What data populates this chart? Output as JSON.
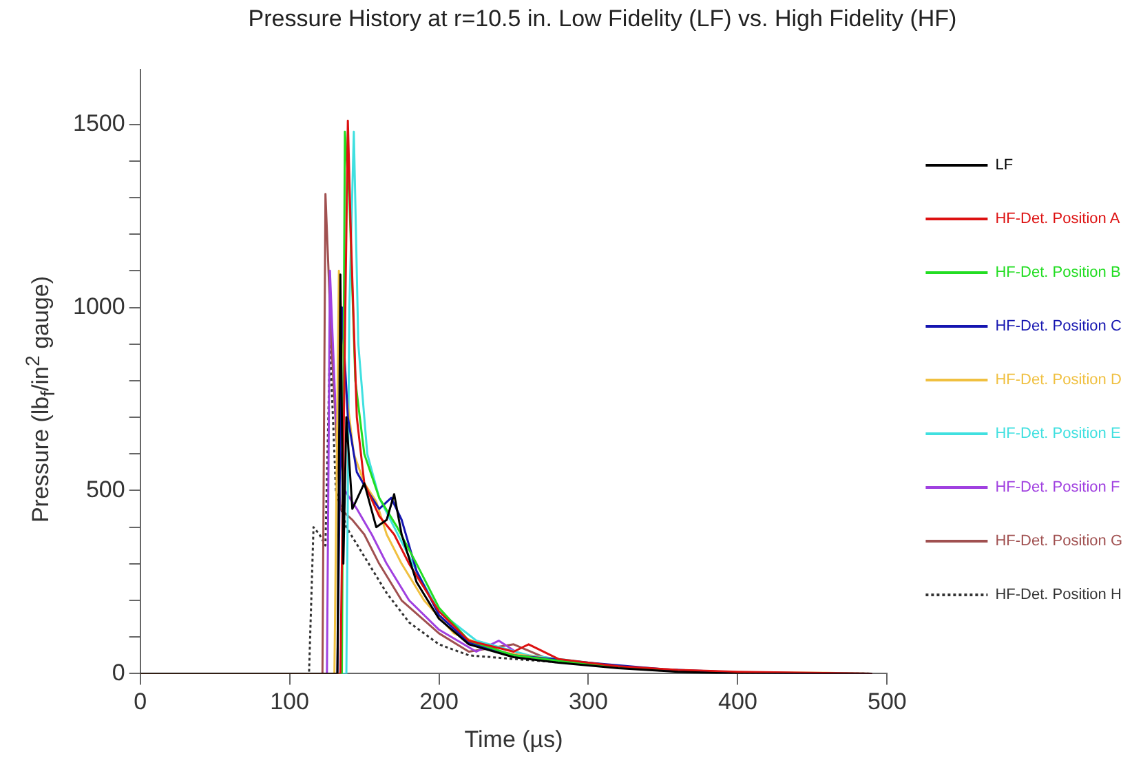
{
  "chart_data": {
    "type": "line",
    "title": "Pressure History at r=10.5 in. Low Fidelity (LF) vs. High Fidelity (HF)",
    "xlabel": "Time (µs)",
    "ylabel": "Pressure (lb$_{f}$/in$^{2}$ gauge)",
    "xlim": [
      0,
      500
    ],
    "ylim": [
      0,
      1650
    ],
    "xticks": [
      0,
      100,
      200,
      300,
      400,
      500
    ],
    "yticks": [
      0,
      {
        "value": 100,
        "label": null
      },
      {
        "value": 200,
        "label": null
      },
      {
        "value": 300,
        "label": null
      },
      {
        "value": 400,
        "label": null
      },
      500,
      {
        "value": 600,
        "label": null
      },
      {
        "value": 700,
        "label": null
      },
      {
        "value": 800,
        "label": null
      },
      {
        "value": 900,
        "label": null
      },
      1000,
      {
        "value": 1100,
        "label": null
      },
      {
        "value": 1200,
        "label": null
      },
      {
        "value": 1300,
        "label": null
      },
      {
        "value": 1400,
        "label": null
      },
      1500
    ],
    "grid": false,
    "legend": "right",
    "marker": "none",
    "series": [
      {
        "name": "LF",
        "color": "#000000",
        "line_style": "solid",
        "x": [
          0,
          132,
          134,
          136,
          138,
          142,
          150,
          158,
          165,
          170,
          175,
          185,
          200,
          220,
          250,
          280,
          320,
          360,
          400,
          490
        ],
        "values": [
          0,
          0,
          1090,
          300,
          700,
          450,
          520,
          400,
          420,
          490,
          380,
          250,
          150,
          80,
          45,
          30,
          15,
          5,
          0,
          0
        ]
      },
      {
        "name": "HF-Det. Position A",
        "color": "#dd1111",
        "line_style": "solid",
        "x": [
          0,
          134,
          137,
          139,
          141,
          145,
          150,
          160,
          170,
          180,
          200,
          220,
          250,
          260,
          280,
          320,
          360,
          400,
          490
        ],
        "values": [
          0,
          0,
          900,
          1510,
          1200,
          700,
          520,
          430,
          380,
          300,
          170,
          90,
          60,
          80,
          40,
          20,
          10,
          5,
          0
        ]
      },
      {
        "name": "HF-Det. Position B",
        "color": "#22dd22",
        "line_style": "solid",
        "x": [
          0,
          135,
          137,
          140,
          144,
          150,
          160,
          172,
          185,
          200,
          220,
          250,
          300,
          350
        ],
        "values": [
          0,
          0,
          1480,
          1300,
          800,
          600,
          480,
          400,
          300,
          180,
          90,
          50,
          25,
          10
        ]
      },
      {
        "name": "HF-Det. Position C",
        "color": "#1515b0",
        "line_style": "solid",
        "x": [
          0,
          132,
          135,
          139,
          145,
          152,
          160,
          168,
          175,
          185,
          200,
          220,
          250,
          300,
          350,
          400,
          490
        ],
        "values": [
          0,
          0,
          1000,
          700,
          550,
          500,
          450,
          480,
          420,
          280,
          160,
          85,
          50,
          30,
          12,
          3,
          0
        ]
      },
      {
        "name": "HF-Det. Position D",
        "color": "#f0c040",
        "line_style": "solid",
        "x": [
          0,
          130,
          133,
          137,
          143,
          150,
          158,
          165,
          175,
          190,
          210,
          240,
          300,
          350,
          400,
          460,
          490
        ],
        "values": [
          0,
          0,
          1100,
          800,
          600,
          520,
          470,
          380,
          300,
          200,
          110,
          60,
          25,
          10,
          3,
          2,
          0
        ]
      },
      {
        "name": "HF-Det. Position E",
        "color": "#40e0e0",
        "line_style": "solid",
        "x": [
          0,
          138,
          140,
          143,
          146,
          152,
          160,
          170,
          185,
          200,
          225,
          260,
          320
        ],
        "values": [
          0,
          0,
          1000,
          1480,
          900,
          600,
          480,
          400,
          280,
          170,
          90,
          50,
          20
        ]
      },
      {
        "name": "HF-Det. Position F",
        "color": "#a040e0",
        "line_style": "solid",
        "x": [
          0,
          125,
          127,
          131,
          137,
          145,
          155,
          165,
          180,
          200,
          225,
          240,
          255,
          300
        ],
        "values": [
          0,
          0,
          1100,
          700,
          500,
          450,
          380,
          300,
          200,
          120,
          60,
          90,
          50,
          25
        ]
      },
      {
        "name": "HF-Det. Position G",
        "color": "#a05050",
        "line_style": "solid",
        "x": [
          0,
          122,
          124,
          128,
          134,
          142,
          150,
          160,
          175,
          200,
          220,
          250,
          270,
          300,
          350,
          400,
          490
        ],
        "values": [
          0,
          0,
          1310,
          900,
          450,
          420,
          380,
          300,
          200,
          110,
          60,
          80,
          45,
          25,
          10,
          2,
          0
        ]
      },
      {
        "name": "HF-Det. Position H",
        "color": "#333333",
        "line_style": "dotted",
        "x": [
          0,
          113,
          116,
          120,
          124,
          127,
          131,
          138,
          150,
          165,
          180,
          200,
          220,
          250,
          300,
          350,
          400,
          490
        ],
        "values": [
          0,
          0,
          400,
          380,
          350,
          900,
          500,
          400,
          320,
          220,
          140,
          80,
          50,
          40,
          25,
          8,
          2,
          0
        ]
      }
    ]
  }
}
